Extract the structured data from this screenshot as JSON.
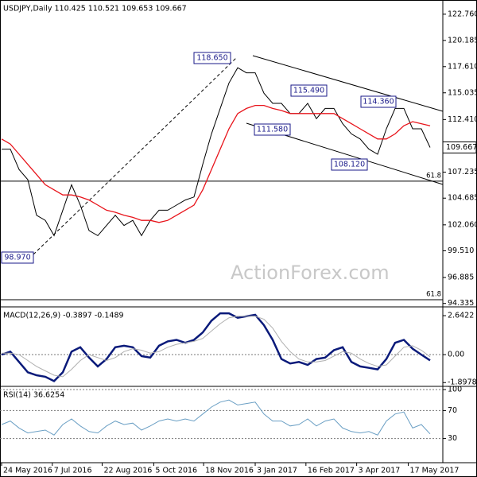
{
  "chart_data": [
    {
      "type": "line",
      "title": "USDJPY,Daily 110.425 110.521 109.653 109.667",
      "watermark": "ActionForex.com",
      "price_label": "109.667",
      "x": [
        0,
        1,
        2,
        3,
        4,
        5,
        6,
        7,
        8,
        9,
        10,
        11,
        12,
        13,
        14,
        15,
        16,
        17,
        18,
        19,
        20,
        21,
        22,
        23,
        24,
        25,
        26,
        27,
        28,
        29,
        30,
        31,
        32,
        33,
        34,
        35,
        36,
        37,
        38,
        39,
        40,
        41,
        42,
        43,
        44,
        45,
        46,
        47,
        48,
        49
      ],
      "xlim": [
        -0.18,
        50.45
      ],
      "ylim": [
        94.0,
        124.0
      ],
      "yticks": [
        {
          "value": 122.76,
          "label": "122.760"
        },
        120.185,
        {
          "value": 117.61,
          "label": "117.610"
        },
        115.035,
        {
          "value": 112.41,
          "label": "112.410"
        },
        107.235,
        104.685,
        {
          "value": 102.06,
          "label": "102.060"
        },
        {
          "value": 99.51,
          "label": "99.510"
        },
        96.885,
        94.335
      ],
      "levels": [
        {
          "value": 106.35,
          "label": "61.8"
        },
        {
          "value": 94.7,
          "label": "61.8"
        }
      ],
      "annotations": [
        "118.650",
        "115.490",
        "114.360",
        "111.580",
        "108.120",
        "98.970"
      ],
      "series": [
        {
          "color": "#000000",
          "values": [
            109.5,
            109.5,
            107.5,
            106.5,
            103,
            102.5,
            101,
            103.5,
            106,
            104,
            101.5,
            101,
            102,
            103,
            102,
            102.5,
            101,
            102.5,
            103.5,
            103.5,
            104,
            104.5,
            104.8,
            108,
            111,
            113.5,
            116,
            117.5,
            117,
            117,
            115,
            114,
            114,
            113,
            113,
            114,
            112.5,
            113.5,
            113.5,
            112,
            111,
            110.5,
            109.5,
            109,
            111.5,
            113.5,
            113.5,
            111.5,
            111.5,
            109.667
          ]
        },
        {
          "color": "#e8141b",
          "values": [
            110.5,
            110,
            109,
            108,
            107,
            106,
            105.5,
            105,
            105,
            104.8,
            104.5,
            104,
            103.5,
            103.3,
            103,
            102.8,
            102.5,
            102.5,
            102.3,
            102.5,
            103,
            103.5,
            104,
            105.5,
            107.5,
            109.5,
            111.5,
            113,
            113.5,
            113.8,
            113.8,
            113.5,
            113.3,
            113,
            113,
            113,
            113,
            113,
            113,
            112.5,
            112,
            111.5,
            111,
            110.5,
            110.5,
            111,
            111.8,
            112.2,
            112,
            111.8
          ]
        }
      ]
    },
    {
      "type": "line",
      "title": "MACD(12,26,9) -0.3897 -0.1489",
      "xlim": [
        -0.18,
        50.45
      ],
      "ylim": [
        -2.1,
        3.13
      ],
      "yticks": [
        2.6422,
        {
          "value": 0,
          "label": "0.00"
        },
        -1.8978
      ],
      "series": [
        {
          "color": "#0a1a7a",
          "values": [
            0,
            0.2,
            -0.5,
            -1.2,
            -1.4,
            -1.5,
            -1.8,
            -1.2,
            0.2,
            0.5,
            -0.2,
            -0.8,
            -0.3,
            0.5,
            0.6,
            0.5,
            -0.1,
            -0.2,
            0.6,
            0.9,
            1.0,
            0.8,
            1.0,
            1.5,
            2.3,
            2.8,
            2.8,
            2.5,
            2.6,
            2.7,
            2.0,
            1.0,
            -0.3,
            -0.6,
            -0.5,
            -0.7,
            -0.3,
            -0.2,
            0.3,
            0.5,
            -0.5,
            -0.8,
            -0.9,
            -1.0,
            -0.3,
            0.8,
            1.0,
            0.4,
            0,
            -0.3897
          ]
        },
        {
          "color": "#b0b0b0",
          "values": [
            0.1,
            0.1,
            0,
            -0.4,
            -0.8,
            -1.1,
            -1.4,
            -1.5,
            -1.0,
            -0.4,
            0,
            -0.2,
            -0.4,
            -0.2,
            0.2,
            0.4,
            0.3,
            0.1,
            0.2,
            0.5,
            0.7,
            0.8,
            0.9,
            1.1,
            1.6,
            2.1,
            2.5,
            2.6,
            2.6,
            2.6,
            2.4,
            1.8,
            0.9,
            0.2,
            -0.3,
            -0.5,
            -0.5,
            -0.4,
            -0.1,
            0.2,
            0.1,
            -0.3,
            -0.6,
            -0.8,
            -0.7,
            -0.1,
            0.5,
            0.6,
            0.3,
            -0.1489
          ]
        }
      ]
    },
    {
      "type": "line",
      "title": "RSI(14) 36.6254",
      "xlim": [
        -0.18,
        50.45
      ],
      "ylim": [
        0,
        100
      ],
      "yticks": [
        100,
        70,
        30
      ],
      "xticks": [
        {
          "value": 0,
          "label": "24 May 2016"
        },
        {
          "value": 5.8,
          "label": "7 Jul 2016"
        },
        {
          "value": 11.5,
          "label": "22 Aug 2016"
        },
        {
          "value": 17.4,
          "label": "5 Oct 2016"
        },
        {
          "value": 23.1,
          "label": "18 Nov 2016"
        },
        {
          "value": 29,
          "label": "3 Jan 2017"
        },
        {
          "value": 34.8,
          "label": "16 Feb 2017"
        },
        {
          "value": 40.6,
          "label": "3 Apr 2017"
        },
        {
          "value": 46.5,
          "label": "17 May 2017"
        }
      ],
      "series": [
        {
          "color": "#6a9fc4",
          "values": [
            50,
            55,
            45,
            38,
            40,
            42,
            35,
            50,
            58,
            48,
            40,
            38,
            48,
            55,
            50,
            52,
            42,
            48,
            55,
            58,
            55,
            58,
            55,
            65,
            75,
            82,
            85,
            78,
            80,
            82,
            65,
            55,
            55,
            48,
            50,
            58,
            48,
            55,
            58,
            45,
            40,
            38,
            40,
            35,
            55,
            65,
            68,
            45,
            50,
            36.6254
          ]
        }
      ]
    }
  ]
}
